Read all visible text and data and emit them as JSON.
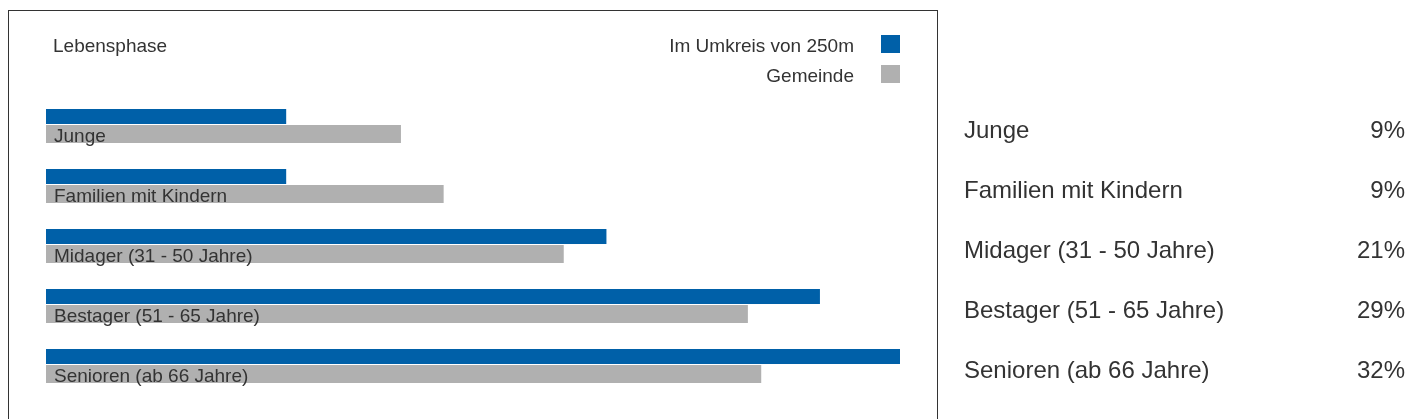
{
  "chart_data": {
    "type": "bar",
    "orientation": "horizontal",
    "title": "Lebensphase",
    "categories": [
      "Junge",
      "Familien mit Kindern",
      "Midager (31 - 50 Jahre)",
      "Bestager (51 - 65 Jahre)",
      "Senioren (ab 66 Jahre)"
    ],
    "series": [
      {
        "name": "Im Umkreis von 250m",
        "color": "#0060a8",
        "values": [
          9,
          9,
          21,
          29,
          32
        ],
        "value_labels": [
          "9%",
          "9%",
          "21%",
          "29%",
          "32%"
        ]
      },
      {
        "name": "Gemeinde",
        "color": "#b0b0b0",
        "values": [
          13.3,
          14.9,
          19.4,
          26.3,
          26.8
        ]
      }
    ],
    "legend": "top right"
  }
}
